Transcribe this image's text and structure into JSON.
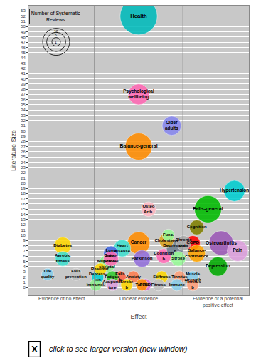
{
  "chart_data": {
    "type": "bubble",
    "xlabel": "Effect",
    "ylabel": "Literature Size",
    "xlim": [
      0.33,
      3.67
    ],
    "ylim": [
      -1.5,
      54
    ],
    "yticks": [
      0,
      1,
      2,
      3,
      4,
      5,
      6,
      7,
      8,
      9,
      10,
      11,
      12,
      13,
      14,
      15,
      16,
      17,
      18,
      19,
      20,
      21,
      22,
      23,
      24,
      25,
      26,
      27,
      28,
      29,
      30,
      31,
      32,
      33,
      34,
      35,
      36,
      37,
      38,
      39,
      40,
      41,
      42,
      43,
      44,
      45,
      46,
      47,
      48,
      49,
      50,
      51,
      52,
      53
    ],
    "tick_labels": "y",
    "grid": true,
    "bg_color": "#C8C8C8",
    "points": [
      {
        "label": "Health",
        "x": 2.0,
        "y": 52,
        "size": 19,
        "color": "#00BBBB"
      },
      {
        "label": "Psychological\nwellbeing",
        "x": 2.0,
        "y": 37,
        "size": 6,
        "color": "#FF69B4"
      },
      {
        "label": "Older\nadults",
        "x": 2.5,
        "y": 31,
        "size": 5,
        "color": "#8888EE"
      },
      {
        "label": "Balance-general",
        "x": 2.0,
        "y": 27,
        "size": 10,
        "color": "#FF8C00"
      },
      {
        "label": "Osteo\nArth.",
        "x": 2.15,
        "y": 15,
        "size": 3,
        "color": "#FFB6C1"
      },
      {
        "label": "Diabetes",
        "x": 0.85,
        "y": 8,
        "size": 4,
        "color": "#FFD700"
      },
      {
        "label": "Aerobic\nfitness",
        "x": 0.85,
        "y": 5.5,
        "size": 3,
        "color": "#40E0D0"
      },
      {
        "label": "Life\nquality",
        "x": 0.62,
        "y": 2.5,
        "size": 2,
        "color": "#87CEEB"
      },
      {
        "label": "Falls\nprevention",
        "x": 1.05,
        "y": 2.5,
        "size": 2,
        "color": "#C0C0C0"
      },
      {
        "label": "Falls-general",
        "x": 3.05,
        "y": 15,
        "size": 10,
        "color": "#00BB00"
      },
      {
        "label": "Hypertension",
        "x": 3.45,
        "y": 18.5,
        "size": 6,
        "color": "#00CED1"
      },
      {
        "label": "Osteoarthritis",
        "x": 3.25,
        "y": 8.5,
        "size": 8,
        "color": "#9B59B6"
      },
      {
        "label": "Pain",
        "x": 3.5,
        "y": 7,
        "size": 6,
        "color": "#DDA0DD"
      },
      {
        "label": "Depression",
        "x": 3.2,
        "y": 4,
        "size": 5,
        "color": "#00AA00"
      },
      {
        "label": "COPD",
        "x": 2.82,
        "y": 8.5,
        "size": 3,
        "color": "#FF0000"
      },
      {
        "label": "Balance-\nconfidence",
        "x": 2.88,
        "y": 6.5,
        "size": 4,
        "color": "#FFA500"
      },
      {
        "label": "Cognition",
        "x": 2.88,
        "y": 11.5,
        "size": 3,
        "color": "#808000"
      },
      {
        "label": "Muscle\nstrength",
        "x": 2.82,
        "y": 2,
        "size": 2,
        "color": "#87CEEB"
      },
      {
        "label": "Cancer",
        "x": 2.0,
        "y": 8.5,
        "size": 7,
        "color": "#FF8C00"
      },
      {
        "label": "Heart\ndisease",
        "x": 1.75,
        "y": 7.5,
        "size": 4,
        "color": "#40E0D0"
      },
      {
        "label": "Lung\nfunc.",
        "x": 1.58,
        "y": 6.5,
        "size": 3,
        "color": "#4169E1"
      },
      {
        "label": "Musculo-\nskeletal",
        "x": 1.52,
        "y": 4.5,
        "size": 4,
        "color": "#90EE90"
      },
      {
        "label": "Osteo-\nporosis",
        "x": 1.58,
        "y": 5.5,
        "size": 3,
        "color": "#FF69B4"
      },
      {
        "label": "Parkinson",
        "x": 2.05,
        "y": 5.5,
        "size": 4,
        "color": "#9370DB"
      },
      {
        "label": "Cognition\nb",
        "x": 2.38,
        "y": 6,
        "size": 3,
        "color": "#FF69B4"
      },
      {
        "label": "Depression\nb",
        "x": 2.55,
        "y": 7.5,
        "size": 4,
        "color": "#708090"
      },
      {
        "label": "Cholesterol",
        "x": 2.42,
        "y": 9,
        "size": 3,
        "color": "#DAA520"
      },
      {
        "label": "Stroke",
        "x": 2.6,
        "y": 5.5,
        "size": 3,
        "color": "#98FB98"
      },
      {
        "label": "Anxiety",
        "x": 1.92,
        "y": 2,
        "size": 2,
        "color": "#FF7F50"
      },
      {
        "label": "Falls\nb",
        "x": 1.72,
        "y": 2,
        "size": 2,
        "color": "#FF6347"
      },
      {
        "label": "PTSD",
        "x": 2.1,
        "y": 0.5,
        "size": 2,
        "color": "#DA70D6"
      },
      {
        "label": "Fatigue",
        "x": 1.6,
        "y": 2,
        "size": 2,
        "color": "#32CD32"
      },
      {
        "label": "Stiffness",
        "x": 2.35,
        "y": 2,
        "size": 2,
        "color": "#FFD700"
      },
      {
        "label": "Tinnitus",
        "x": 2.62,
        "y": 2,
        "size": 2,
        "color": "#FFA07A"
      },
      {
        "label": "Depress-\nion",
        "x": 1.38,
        "y": 2,
        "size": 2,
        "color": "#00CED1"
      },
      {
        "label": "Chronic\npain",
        "x": 2.68,
        "y": 8.5,
        "size": 3,
        "color": "#AAAAAA"
      },
      {
        "label": "Func.",
        "x": 2.45,
        "y": 10,
        "size": 2,
        "color": "#98FB98"
      },
      {
        "label": "Rheumat.",
        "x": 1.42,
        "y": 3.5,
        "size": 2,
        "color": "#FFD700"
      },
      {
        "label": "Immunol.",
        "x": 1.35,
        "y": 0.5,
        "size": 2,
        "color": "#90EE90"
      },
      {
        "label": "Acupunc-\nture",
        "x": 1.6,
        "y": 0.5,
        "size": 2,
        "color": "#DDA0DD"
      },
      {
        "label": "Stroke\nb",
        "x": 1.82,
        "y": 0.5,
        "size": 2,
        "color": "#FFD700"
      },
      {
        "label": "Tai chi",
        "x": 2.05,
        "y": 0.5,
        "size": 2,
        "color": "#FF8C00"
      },
      {
        "label": "Fitness",
        "x": 2.3,
        "y": 0.5,
        "size": 2,
        "color": "#C0C0C0"
      },
      {
        "label": "Immune",
        "x": 2.58,
        "y": 0.5,
        "size": 2,
        "color": "#87CEEB"
      },
      {
        "label": "Tinnitus\nb",
        "x": 2.82,
        "y": 0.5,
        "size": 2,
        "color": "#FFA07A"
      }
    ],
    "vlines": [
      1.33,
      2.67
    ],
    "annotations": [
      {
        "text": "Evidence of no effect",
        "x": 0.83,
        "y": -1.3
      },
      {
        "text": "Unclear evidence",
        "x": 2.0,
        "y": -1.3
      },
      {
        "text": "Evidence of a potential\npositive effect",
        "x": 3.2,
        "y": -1.3
      }
    ],
    "size_legend": {
      "title": "Number of Systematic\nReviews",
      "x": 0.75,
      "y": 53.5,
      "sizes": [
        10,
        5,
        1
      ]
    },
    "footer": {
      "box_text": "X",
      "text": " click to see larger version (new window)"
    }
  }
}
